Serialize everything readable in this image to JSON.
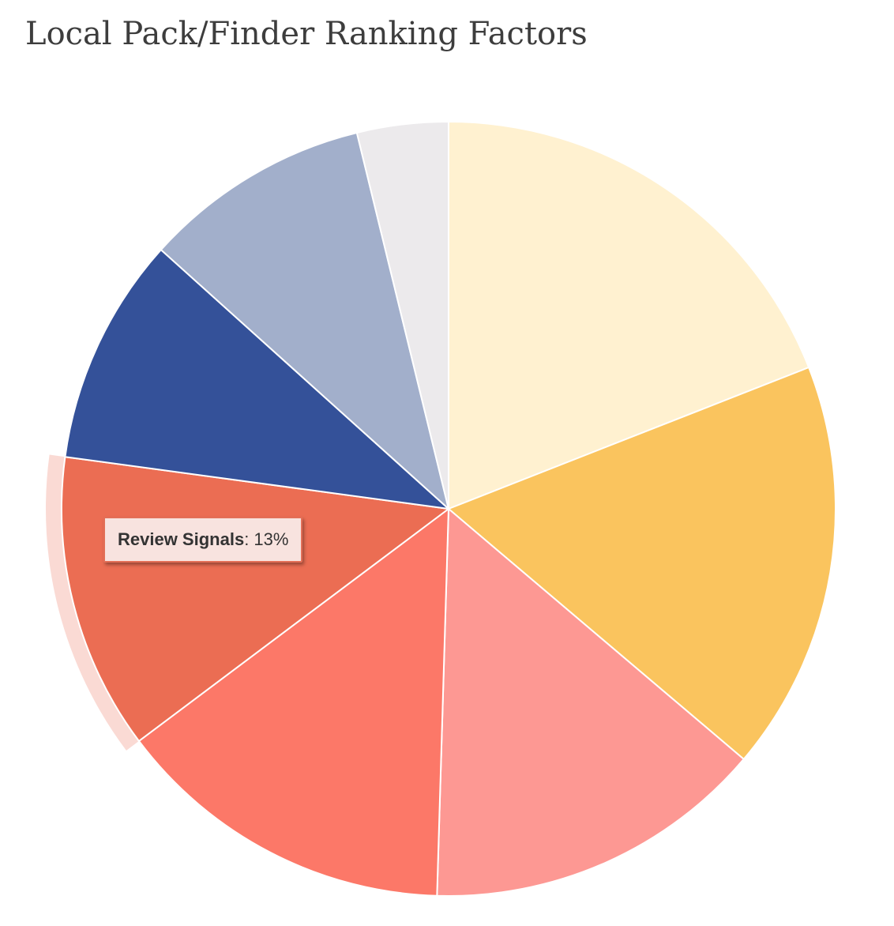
{
  "chart_data": {
    "type": "pie",
    "title": "Local Pack/Finder Ranking Factors",
    "categories": [
      "",
      "",
      "",
      "Review Signals",
      "",
      "",
      ""
    ],
    "values": [
      20,
      18,
      15,
      13,
      10,
      10,
      4
    ],
    "colors": [
      "#fff1d0",
      "#fac45e",
      "#fd9893",
      "#fc7868",
      "#eb6d53",
      "#345199",
      "#a2afcb",
      "#eceaec"
    ],
    "slices_order_note": "",
    "highlighted": "Review Signals",
    "tooltip": {
      "label": "Review Signals",
      "value": "13%"
    }
  }
}
